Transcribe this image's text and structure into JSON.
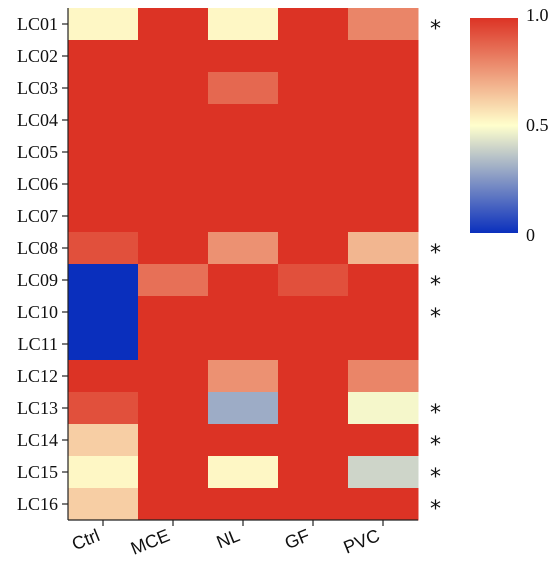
{
  "chart_data": {
    "type": "heatmap",
    "rows": [
      "LC01",
      "LC02",
      "LC03",
      "LC04",
      "LC05",
      "LC06",
      "LC07",
      "LC08",
      "LC09",
      "LC10",
      "LC11",
      "LC12",
      "LC13",
      "LC14",
      "LC15",
      "LC16"
    ],
    "columns": [
      "Ctrl",
      "MCE",
      "NL",
      "GF",
      "PVC"
    ],
    "values": [
      [
        0.52,
        1.0,
        0.52,
        1.0,
        0.8
      ],
      [
        1.0,
        1.0,
        1.0,
        1.0,
        1.0
      ],
      [
        1.0,
        1.0,
        0.87,
        1.0,
        1.0
      ],
      [
        1.0,
        1.0,
        1.0,
        1.0,
        1.0
      ],
      [
        1.0,
        1.0,
        1.0,
        1.0,
        1.0
      ],
      [
        1.0,
        1.0,
        1.0,
        1.0,
        1.0
      ],
      [
        1.0,
        1.0,
        1.0,
        1.0,
        1.0
      ],
      [
        0.93,
        1.0,
        0.77,
        1.0,
        0.68
      ],
      [
        0.0,
        0.85,
        1.0,
        0.93,
        1.0
      ],
      [
        0.0,
        1.0,
        1.0,
        1.0,
        1.0
      ],
      [
        0.0,
        1.0,
        1.0,
        1.0,
        1.0
      ],
      [
        1.0,
        1.0,
        0.77,
        1.0,
        0.8
      ],
      [
        0.93,
        1.0,
        0.3,
        1.0,
        0.48
      ],
      [
        0.62,
        1.0,
        1.0,
        1.0,
        1.0
      ],
      [
        0.52,
        1.0,
        0.52,
        1.0,
        0.4
      ],
      [
        0.62,
        1.0,
        1.0,
        1.0,
        1.0
      ]
    ],
    "significant": [
      true,
      false,
      false,
      false,
      false,
      false,
      false,
      true,
      true,
      true,
      false,
      false,
      true,
      true,
      true,
      true
    ],
    "significance_marker": "*",
    "colorbar": {
      "min": 0,
      "max": 1.0,
      "ticks": [
        "1.0",
        "0.5",
        "0"
      ]
    },
    "colors": {
      "low": "#0a2fbd",
      "mid": "#ffffcc",
      "high": "#dc3325"
    }
  }
}
